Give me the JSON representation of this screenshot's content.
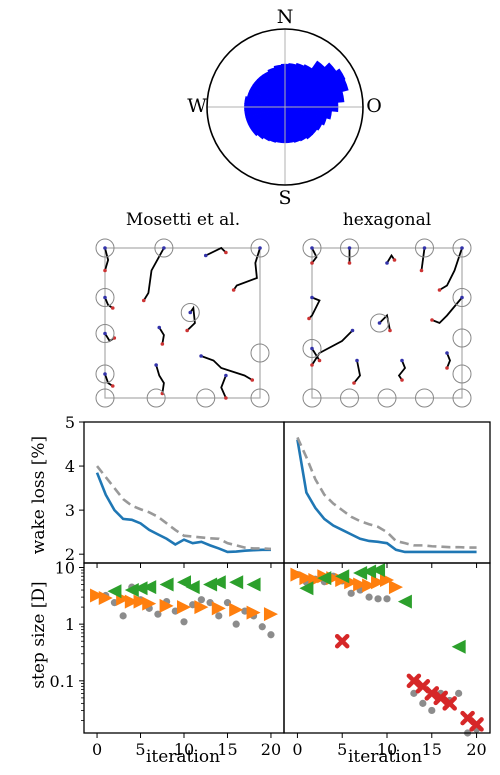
{
  "colors": {
    "rose": "#0000ff",
    "blue_line": "#1f77b4",
    "gray_dash": "#999999",
    "gray_dot": "#8c8c8c",
    "orange": "#ff7f0e",
    "green": "#2ca02c",
    "red": "#d62728",
    "frame": "#aaaaaa"
  },
  "compass": {
    "N": "N",
    "S": "S",
    "W": "W",
    "E": "O"
  },
  "layouts": {
    "titles": [
      "Mosetti et al.",
      "hexagonal"
    ]
  },
  "chart_data": [
    {
      "type": "polar-bar",
      "title": "",
      "sectors_deg_from_north": [
        0,
        10,
        20,
        30,
        40,
        50,
        60,
        70,
        80,
        90,
        100,
        110,
        120,
        130,
        140,
        150,
        160,
        170,
        180,
        190,
        200,
        210,
        220,
        230,
        240,
        250,
        260,
        270,
        280,
        290,
        300,
        310,
        320,
        330,
        340,
        350
      ],
      "radius": [
        0.55,
        0.56,
        0.58,
        0.6,
        0.72,
        0.8,
        0.85,
        0.84,
        0.76,
        0.68,
        0.6,
        0.55,
        0.52,
        0.5,
        0.5,
        0.48,
        0.47,
        0.46,
        0.46,
        0.46,
        0.47,
        0.48,
        0.5,
        0.52,
        0.52,
        0.52,
        0.52,
        0.52,
        0.52,
        0.5,
        0.5,
        0.5,
        0.5,
        0.5,
        0.52,
        0.54
      ],
      "rmax": 1
    },
    {
      "type": "line",
      "panel": "Mosetti et al.",
      "xlabel": "iteration",
      "ylabel": "wake loss [%]",
      "xlim": [
        -1.5,
        21.5
      ],
      "ylim": [
        1.8,
        5
      ],
      "yticks": [
        2,
        3,
        4,
        5
      ],
      "xticks": [
        0,
        5,
        10,
        15,
        20
      ],
      "series": [
        {
          "style": "solid",
          "x": [
            0,
            1,
            2,
            3,
            4,
            5,
            6,
            7,
            8,
            9,
            10,
            11,
            12,
            13,
            14,
            15,
            16,
            17,
            18,
            19,
            20
          ],
          "y": [
            3.85,
            3.35,
            3.0,
            2.8,
            2.78,
            2.7,
            2.55,
            2.45,
            2.35,
            2.22,
            2.33,
            2.25,
            2.28,
            2.2,
            2.13,
            2.05,
            2.06,
            2.08,
            2.09,
            2.1,
            2.1
          ]
        },
        {
          "style": "dashed",
          "x": [
            0,
            1,
            2,
            3,
            4,
            5,
            6,
            7,
            8,
            9,
            10,
            11,
            12,
            13,
            14,
            15,
            16,
            17,
            18,
            19,
            20
          ],
          "y": [
            4.0,
            3.75,
            3.5,
            3.25,
            3.1,
            3.02,
            2.95,
            2.85,
            2.7,
            2.55,
            2.42,
            2.4,
            2.38,
            2.36,
            2.35,
            2.25,
            2.2,
            2.15,
            2.13,
            2.13,
            2.12
          ]
        }
      ]
    },
    {
      "type": "line",
      "panel": "hexagonal",
      "xlabel": "",
      "ylabel": "",
      "xlim": [
        -1.5,
        21.5
      ],
      "ylim": [
        1.8,
        5
      ],
      "xticks": [
        0,
        5,
        10,
        15,
        20
      ],
      "series": [
        {
          "style": "solid",
          "x": [
            0,
            1,
            2,
            3,
            4,
            5,
            6,
            7,
            8,
            9,
            10,
            11,
            12,
            13,
            14,
            15,
            16,
            17,
            18,
            19,
            20
          ],
          "y": [
            4.6,
            3.4,
            3.05,
            2.8,
            2.65,
            2.55,
            2.45,
            2.35,
            2.3,
            2.28,
            2.25,
            2.1,
            2.05,
            2.05,
            2.05,
            2.05,
            2.05,
            2.05,
            2.05,
            2.05,
            2.05
          ]
        },
        {
          "style": "dashed",
          "x": [
            0,
            1,
            2,
            3,
            4,
            5,
            6,
            7,
            8,
            9,
            10,
            11,
            12,
            13,
            14,
            15,
            16,
            17,
            18,
            19,
            20
          ],
          "y": [
            4.65,
            4.2,
            3.7,
            3.35,
            3.15,
            3.0,
            2.85,
            2.75,
            2.68,
            2.62,
            2.5,
            2.3,
            2.25,
            2.2,
            2.2,
            2.18,
            2.17,
            2.16,
            2.16,
            2.15,
            2.15
          ]
        }
      ]
    },
    {
      "type": "scatter",
      "panel": "Mosetti et al.",
      "xlabel": "iteration",
      "ylabel": "step size [D]",
      "yscale": "log",
      "ylim": [
        0.012,
        12
      ],
      "yticks": [
        10,
        1,
        0.1
      ],
      "ytick_labels": [
        "10",
        "1",
        "0.1"
      ],
      "xlim": [
        -1.5,
        21.5
      ],
      "xticks": [
        0,
        5,
        10,
        15,
        20
      ],
      "series": [
        {
          "marker": "dot",
          "x": [
            1,
            2,
            3,
            4,
            5,
            6,
            7,
            8,
            9,
            10,
            11,
            12,
            13,
            14,
            15,
            16,
            17,
            18,
            19,
            20
          ],
          "y": [
            3.2,
            2.4,
            1.4,
            4.5,
            2.7,
            1.9,
            1.5,
            2.5,
            1.7,
            1.1,
            2.2,
            2.7,
            2.4,
            1.4,
            2.4,
            1.0,
            1.7,
            1.4,
            0.9,
            0.65
          ]
        },
        {
          "marker": "triangle-right",
          "x": [
            0,
            1,
            3,
            4,
            5,
            6,
            8,
            10,
            12,
            14,
            16,
            18,
            20
          ],
          "y": [
            3.2,
            2.9,
            2.8,
            2.5,
            2.5,
            2.3,
            2.1,
            2.0,
            2.0,
            1.9,
            1.8,
            1.6,
            1.5
          ]
        },
        {
          "marker": "triangle-left",
          "x": [
            2,
            4,
            5,
            6,
            8,
            10,
            11,
            13,
            14,
            16,
            18
          ],
          "y": [
            3.8,
            4.0,
            4.3,
            4.5,
            5.0,
            5.5,
            4.5,
            5.0,
            5.5,
            5.5,
            5.0
          ]
        }
      ]
    },
    {
      "type": "scatter",
      "panel": "hexagonal",
      "xlabel": "iteration",
      "ylabel": "",
      "yscale": "log",
      "ylim": [
        0.012,
        12
      ],
      "xlim": [
        -1.5,
        21.5
      ],
      "xticks": [
        0,
        5,
        10,
        15,
        20
      ],
      "series": [
        {
          "marker": "dot",
          "x": [
            0,
            1,
            2,
            3,
            4,
            5,
            6,
            7,
            8,
            9,
            10,
            13,
            14,
            15,
            16,
            17,
            18,
            19,
            20
          ],
          "y": [
            7.5,
            5.5,
            6.2,
            5.6,
            7.0,
            5.8,
            3.5,
            4.0,
            3.0,
            2.8,
            2.8,
            0.06,
            0.04,
            0.03,
            0.06,
            0.045,
            0.06,
            0.012,
            0.014
          ]
        },
        {
          "marker": "triangle-right",
          "x": [
            0,
            1,
            2,
            3,
            4,
            5,
            6,
            7,
            8,
            9,
            10,
            11
          ],
          "y": [
            7.5,
            6.5,
            6.0,
            7.0,
            6.5,
            6.0,
            5.5,
            5.0,
            4.8,
            5.5,
            6.0,
            4.5
          ]
        },
        {
          "marker": "triangle-left",
          "x": [
            1,
            3,
            5,
            7,
            8,
            9,
            12,
            18
          ],
          "y": [
            4.3,
            6.5,
            7.0,
            8.0,
            8.5,
            9.0,
            2.5,
            0.4
          ]
        },
        {
          "marker": "x",
          "x": [
            5,
            13,
            14,
            15,
            16,
            17,
            19,
            20
          ],
          "y": [
            0.5,
            0.1,
            0.08,
            0.06,
            0.05,
            0.04,
            0.022,
            0.017
          ]
        }
      ]
    }
  ]
}
